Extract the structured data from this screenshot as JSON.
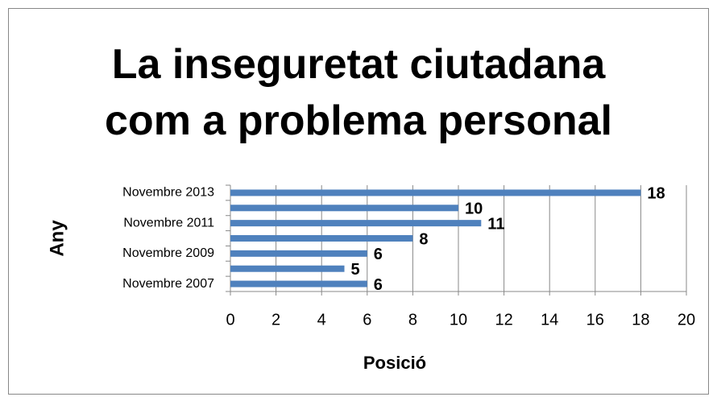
{
  "chart_data": {
    "type": "hbar",
    "title": "La inseguretat ciutadana com a problema personal",
    "x_label": "Posició",
    "y_label": "Any",
    "categories": [
      "Novembre 2007",
      null,
      "Novembre 2009",
      null,
      "Novembre 2011",
      null,
      "Novembre 2013"
    ],
    "values": [
      6,
      5,
      6,
      8,
      11,
      10,
      18
    ],
    "color": "#4f81bd",
    "xlim": [
      0,
      20
    ],
    "xticks": [
      0,
      2,
      4,
      6,
      8,
      10,
      12,
      14,
      16,
      18,
      20
    ],
    "grid": true
  }
}
